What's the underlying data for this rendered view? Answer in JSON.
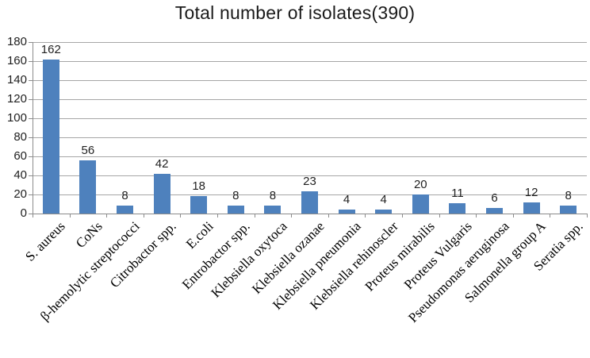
{
  "chart_data": {
    "type": "bar",
    "title": "Total number of isolates(390)",
    "categories": [
      "S. aureus",
      "CoNs",
      "β-hemolytic streptococci",
      "Citrobactor spp.",
      "E.coli",
      "Entrobactor spp.",
      "Klebsiella oxytoca",
      "Klebsiella ozanae",
      "Klebsiella pneumonia",
      "Klebsiella rehinoscler",
      "Proteus mirabilis",
      "Proteus Vulgaris",
      "Pseudomonas aeruginosa",
      "Salmonella group A",
      "Seratia spp."
    ],
    "values": [
      162,
      56,
      8,
      42,
      18,
      8,
      8,
      23,
      4,
      4,
      20,
      11,
      6,
      12,
      8
    ],
    "xlabel": "",
    "ylabel": "",
    "ylim": [
      0,
      180
    ],
    "ytick_step": 20,
    "grid": true,
    "legend_position": "none",
    "bar_color": "#4e81bd",
    "gridline_color": "#a6a6a6",
    "axis_color": "#8c8c8c",
    "text_color": "#1f1f1f"
  }
}
